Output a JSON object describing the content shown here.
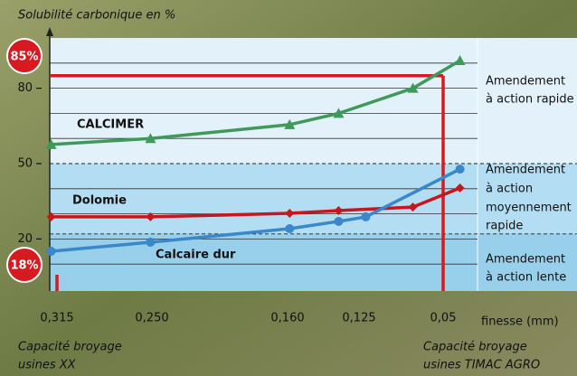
{
  "chart_data": {
    "type": "line",
    "title": "Solubilité carbonique en %",
    "x_label": "finesse (mm)",
    "xticks": [
      {
        "value": 0.315,
        "label": "0,315"
      },
      {
        "value": 0.25,
        "label": "0,250"
      },
      {
        "value": 0.16,
        "label": "0,160"
      },
      {
        "value": 0.125,
        "label": "0,125"
      },
      {
        "value": 0.05,
        "label": "0,05"
      }
    ],
    "ylim": [
      0,
      100
    ],
    "yticks": [
      20,
      50,
      80
    ],
    "grid_lines": [
      10,
      20,
      30,
      40,
      60,
      70,
      80,
      90
    ],
    "dashed_lines": [
      22,
      50
    ],
    "series": [
      {
        "name": "CALCIMER",
        "color": "#3f9a5a",
        "marker": "triangle",
        "x": [
          0.319,
          0.251,
          0.159,
          0.135,
          0.077,
          0.035
        ],
        "values": [
          57.6,
          60,
          65.5,
          70,
          80,
          91
        ]
      },
      {
        "name": "Dolomie",
        "color": "#c8161d",
        "marker": "diamond",
        "x": [
          0.319,
          0.251,
          0.159,
          0.135,
          0.077,
          0.035
        ],
        "values": [
          28.8,
          28.8,
          30.2,
          31.3,
          32.7,
          40.3
        ]
      },
      {
        "name": "Calcaire dur",
        "color": "#3a87c9",
        "marker": "circle",
        "x": [
          0.319,
          0.251,
          0.159,
          0.135,
          0.119,
          0.035
        ],
        "values": [
          15.1,
          18.7,
          24.1,
          27,
          28.8,
          47.8
        ]
      }
    ],
    "markers": [
      {
        "value": 85,
        "label": "85%",
        "x": 0.05,
        "color": "#d71920"
      },
      {
        "value": 18,
        "label": "18%",
        "x": 0.315,
        "color": "#d71920"
      }
    ],
    "zones": [
      {
        "from": 50,
        "to": 100,
        "color": "#e2f1fa",
        "lines": [
          "Amendement",
          "à action rapide"
        ]
      },
      {
        "from": 22,
        "to": 50,
        "color": "#b3ddf2",
        "lines": [
          "Amendement",
          "à action",
          "moyennement",
          "rapide"
        ]
      },
      {
        "from": 0,
        "to": 22,
        "color": "#98d0ec",
        "lines": [
          "Amendement",
          "à action lente"
        ]
      }
    ],
    "notes": [
      {
        "lines": [
          "Capacité broyage",
          "usines XX"
        ]
      },
      {
        "lines": [
          "Capacité broyage",
          "usines TIMAC AGRO"
        ]
      }
    ]
  }
}
